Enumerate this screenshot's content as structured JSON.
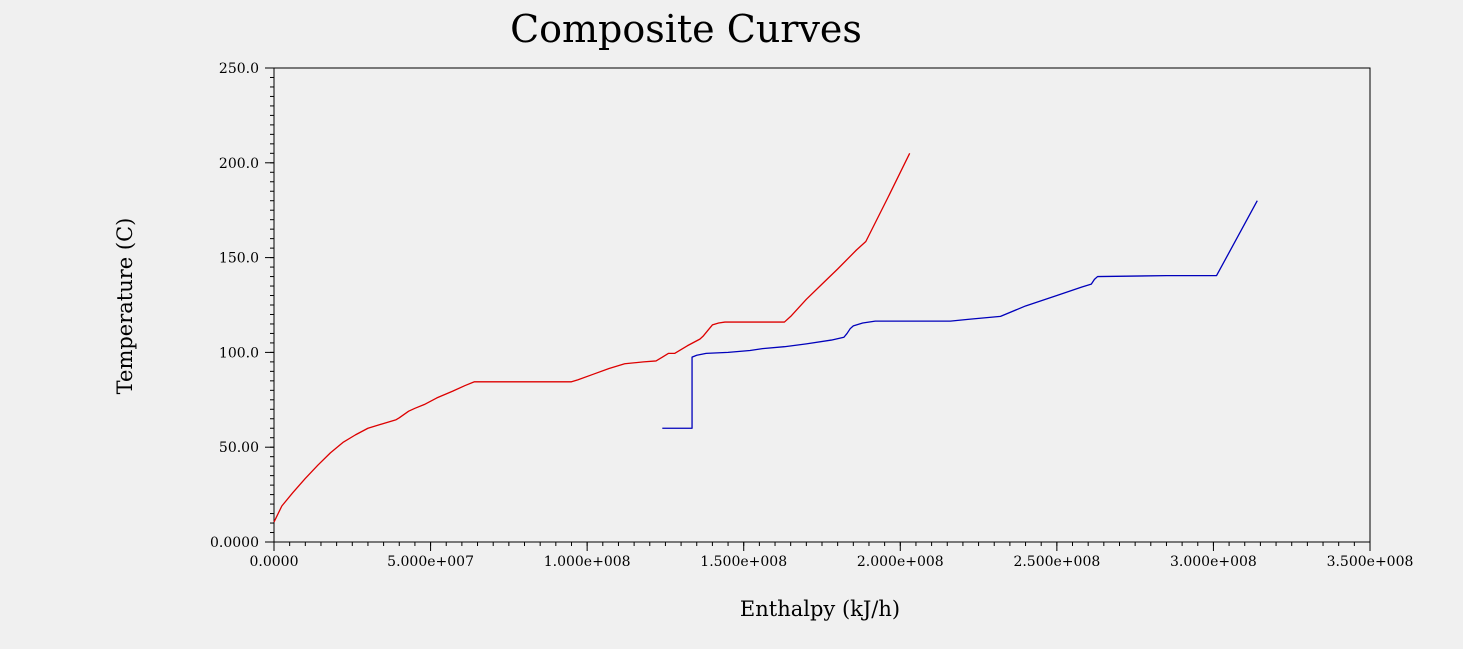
{
  "chart_data": {
    "type": "line",
    "title": "Composite Curves",
    "xlabel": "Enthalpy (kJ/h)",
    "ylabel": "Temperature (C)",
    "xlim": [
      0,
      350000000
    ],
    "ylim": [
      0,
      250
    ],
    "x_ticks": [
      {
        "value": 0,
        "label": "0.0000"
      },
      {
        "value": 50000000,
        "label": "5.000e+007"
      },
      {
        "value": 100000000,
        "label": "1.000e+008"
      },
      {
        "value": 150000000,
        "label": "1.500e+008"
      },
      {
        "value": 200000000,
        "label": "2.000e+008"
      },
      {
        "value": 250000000,
        "label": "2.500e+008"
      },
      {
        "value": 300000000,
        "label": "3.000e+008"
      },
      {
        "value": 350000000,
        "label": "3.500e+008"
      }
    ],
    "y_ticks": [
      {
        "value": 0,
        "label": "0.0000"
      },
      {
        "value": 50,
        "label": "50.00"
      },
      {
        "value": 100,
        "label": "100.0"
      },
      {
        "value": 150,
        "label": "150.0"
      },
      {
        "value": 200,
        "label": "200.0"
      },
      {
        "value": 250,
        "label": "250.0"
      }
    ],
    "grid": false,
    "series": [
      {
        "color": "#dd0000",
        "points": [
          [
            0,
            10.5
          ],
          [
            2500000,
            19
          ],
          [
            6000000,
            26
          ],
          [
            10000000,
            33.5
          ],
          [
            14000000,
            40.5
          ],
          [
            18000000,
            47
          ],
          [
            22000000,
            52.5
          ],
          [
            26000000,
            56.5
          ],
          [
            30000000,
            60
          ],
          [
            35000000,
            62.5
          ],
          [
            39000000,
            64.5
          ],
          [
            40000000,
            65.5
          ],
          [
            43000000,
            69
          ],
          [
            45000000,
            70.5
          ],
          [
            48000000,
            72.5
          ],
          [
            52000000,
            76
          ],
          [
            57000000,
            79.5
          ],
          [
            61000000,
            82.5
          ],
          [
            64000000,
            84.5
          ],
          [
            95000000,
            84.5
          ],
          [
            97000000,
            85.5
          ],
          [
            102000000,
            88.5
          ],
          [
            107000000,
            91.5
          ],
          [
            112000000,
            94
          ],
          [
            118000000,
            95
          ],
          [
            122000000,
            95.5
          ],
          [
            124000000,
            97.5
          ],
          [
            126000000,
            99.5
          ],
          [
            128000000,
            99.5
          ],
          [
            132000000,
            103.5
          ],
          [
            136000000,
            107
          ],
          [
            137000000,
            108.5
          ],
          [
            139000000,
            112.5
          ],
          [
            140000000,
            114.5
          ],
          [
            142000000,
            115.5
          ],
          [
            144000000,
            116
          ],
          [
            163000000,
            116
          ],
          [
            165000000,
            119
          ],
          [
            170000000,
            128
          ],
          [
            175000000,
            136
          ],
          [
            180000000,
            144
          ],
          [
            186000000,
            154
          ],
          [
            189000000,
            158.5
          ],
          [
            196000000,
            181.5
          ],
          [
            203000000,
            205
          ]
        ]
      },
      {
        "color": "#0000bb",
        "points": [
          [
            124000000,
            60
          ],
          [
            133500000,
            60
          ],
          [
            133500000,
            97.5
          ],
          [
            135000000,
            98.5
          ],
          [
            138000000,
            99.5
          ],
          [
            145000000,
            100
          ],
          [
            152000000,
            101
          ],
          [
            156000000,
            102
          ],
          [
            163000000,
            103
          ],
          [
            170000000,
            104.5
          ],
          [
            178000000,
            106.5
          ],
          [
            182000000,
            108
          ],
          [
            183000000,
            110
          ],
          [
            184000000,
            112.5
          ],
          [
            185000000,
            114
          ],
          [
            188000000,
            115.5
          ],
          [
            192000000,
            116.5
          ],
          [
            216000000,
            116.5
          ],
          [
            222000000,
            117.5
          ],
          [
            232000000,
            119
          ],
          [
            240000000,
            124.5
          ],
          [
            250000000,
            130
          ],
          [
            258000000,
            134.5
          ],
          [
            261000000,
            136
          ],
          [
            262000000,
            138.5
          ],
          [
            263000000,
            140
          ],
          [
            285000000,
            140.5
          ],
          [
            301000000,
            140.5
          ],
          [
            314000000,
            180
          ]
        ]
      }
    ]
  }
}
